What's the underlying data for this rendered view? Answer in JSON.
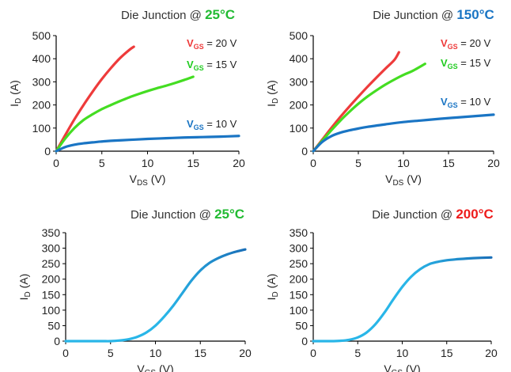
{
  "charts": [
    {
      "type": "line",
      "title": "Die Junction @ ",
      "title_temp": "25°C",
      "title_temp_color": "#22bb33",
      "xlabel": "V",
      "xlabel_sub": "DS",
      "xlabel_unit": " (V)",
      "ylabel": "I",
      "ylabel_sub": "D",
      "ylabel_unit": " (A)",
      "xlim": [
        0,
        20
      ],
      "ylim": [
        0,
        500
      ],
      "xticks": [
        0,
        5,
        10,
        15,
        20
      ],
      "yticks": [
        0,
        100,
        200,
        300,
        400,
        500
      ],
      "series": [
        {
          "label_v": "V",
          "label_sub": "GS",
          "label_val": " = 20 V",
          "color": "#ee3b3b",
          "x": [
            0,
            1,
            2,
            3,
            4,
            5,
            6,
            7,
            8,
            8.5
          ],
          "y": [
            0,
            70,
            138,
            200,
            258,
            312,
            360,
            403,
            438,
            452
          ]
        },
        {
          "label_v": "V",
          "label_sub": "GS",
          "label_val": " = 15 V",
          "color": "#44dd22",
          "x": [
            0,
            1,
            2,
            3,
            4,
            5,
            6,
            7,
            8,
            9,
            10,
            11,
            12,
            13,
            14,
            15
          ],
          "y": [
            0,
            55,
            100,
            135,
            160,
            182,
            200,
            217,
            233,
            247,
            260,
            272,
            283,
            295,
            308,
            322
          ]
        },
        {
          "label_v": "V",
          "label_sub": "GS",
          "label_val": " = 10 V",
          "color": "#1a75c4",
          "x": [
            0,
            1,
            2,
            3,
            4,
            5,
            6,
            8,
            10,
            12,
            14,
            16,
            18,
            20
          ],
          "y": [
            0,
            18,
            28,
            34,
            38,
            42,
            45,
            49,
            53,
            56,
            59,
            61,
            63,
            66
          ]
        }
      ]
    },
    {
      "type": "line",
      "title": "Die Junction @ ",
      "title_temp": "150°C",
      "title_temp_color": "#1a75c4",
      "xlabel": "V",
      "xlabel_sub": "DS",
      "xlabel_unit": " (V)",
      "ylabel": "I",
      "ylabel_sub": "D",
      "ylabel_unit": " (A)",
      "xlim": [
        0,
        20
      ],
      "ylim": [
        0,
        500
      ],
      "xticks": [
        0,
        5,
        10,
        15,
        20
      ],
      "yticks": [
        0,
        100,
        200,
        300,
        400,
        500
      ],
      "series": [
        {
          "label_v": "V",
          "label_sub": "GS",
          "label_val": " = 20 V",
          "color": "#ee3b3b",
          "x": [
            0,
            1,
            2,
            3,
            4,
            5,
            6,
            7,
            8,
            9,
            9.5
          ],
          "y": [
            0,
            50,
            100,
            148,
            193,
            236,
            278,
            318,
            357,
            395,
            428
          ]
        },
        {
          "label_v": "V",
          "label_sub": "GS",
          "label_val": " = 15 V",
          "color": "#44dd22",
          "x": [
            0,
            1,
            2,
            3,
            4,
            5,
            6,
            7,
            8,
            9,
            10,
            11,
            12.4
          ],
          "y": [
            0,
            45,
            90,
            132,
            170,
            205,
            236,
            263,
            288,
            310,
            330,
            347,
            378
          ]
        },
        {
          "label_v": "V",
          "label_sub": "GS",
          "label_val": " = 10 V",
          "color": "#1a75c4",
          "x": [
            0,
            1,
            2,
            3,
            4,
            5,
            6,
            8,
            10,
            12,
            14,
            16,
            18,
            20
          ],
          "y": [
            0,
            40,
            65,
            80,
            90,
            98,
            105,
            116,
            126,
            133,
            140,
            146,
            152,
            158
          ]
        }
      ]
    },
    {
      "type": "line",
      "title": "Die Junction @ ",
      "title_temp": "25°C",
      "title_temp_color": "#22bb33",
      "xlabel": "V",
      "xlabel_sub": "GS",
      "xlabel_unit": " (V)",
      "ylabel": "I",
      "ylabel_sub": "D",
      "ylabel_unit": " (A)",
      "xlim": [
        0,
        20
      ],
      "ylim": [
        0,
        350
      ],
      "xticks": [
        0,
        5,
        10,
        15,
        20
      ],
      "yticks": [
        0,
        50,
        100,
        150,
        200,
        250,
        300,
        350
      ],
      "series": [
        {
          "color_gradient": [
            "#29b6e8",
            "#1a6fb8"
          ],
          "x": [
            0,
            2,
            4,
            5,
            6,
            7,
            8,
            9,
            10,
            11,
            12,
            13,
            14,
            15,
            16,
            17,
            18,
            19,
            20
          ],
          "y": [
            0,
            0,
            0,
            0,
            2,
            6,
            14,
            28,
            50,
            80,
            115,
            155,
            195,
            228,
            252,
            268,
            280,
            289,
            296
          ]
        }
      ]
    },
    {
      "type": "line",
      "title": "Die Junction @ ",
      "title_temp": "200°C",
      "title_temp_color": "#ee1c1c",
      "xlabel": "V",
      "xlabel_sub": "GS",
      "xlabel_unit": " (V)",
      "ylabel": "I",
      "ylabel_sub": "D",
      "ylabel_unit": " (A)",
      "xlim": [
        0,
        20
      ],
      "ylim": [
        0,
        350
      ],
      "xticks": [
        0,
        5,
        10,
        15,
        20
      ],
      "yticks": [
        0,
        50,
        100,
        150,
        200,
        250,
        300,
        350
      ],
      "series": [
        {
          "color_gradient": [
            "#29b6e8",
            "#1a6fb8"
          ],
          "x": [
            0,
            2,
            3,
            4,
            5,
            6,
            7,
            8,
            9,
            10,
            11,
            12,
            13,
            14,
            15,
            16,
            17,
            18,
            20
          ],
          "y": [
            0,
            0,
            1,
            4,
            12,
            28,
            55,
            92,
            135,
            175,
            208,
            232,
            248,
            256,
            261,
            264,
            266,
            268,
            270
          ]
        }
      ]
    }
  ]
}
